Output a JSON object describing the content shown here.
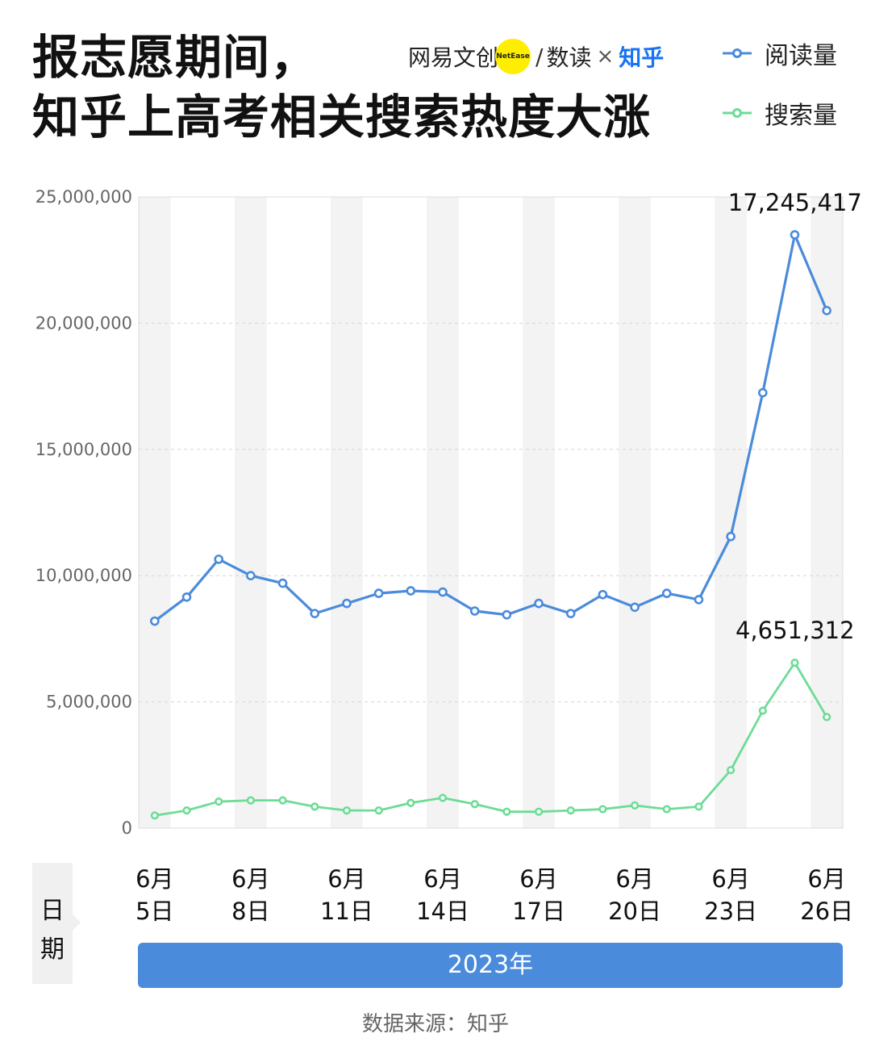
{
  "title": {
    "line1": "报志愿期间，",
    "line2": "知乎上高考相关搜索热度大涨"
  },
  "brand": {
    "part1": "网易文创",
    "dot_text": "NetEase",
    "slash": "/",
    "part2": "数读",
    "times": "×",
    "part3": "知乎",
    "dot_color": "#ffee00",
    "zhihu_color": "#1772f6"
  },
  "legend": {
    "items": [
      {
        "label": "阅读量",
        "color": "#4a8bdb"
      },
      {
        "label": "搜索量",
        "color": "#6ddc96"
      }
    ]
  },
  "x_axis": {
    "title": "日期",
    "year_label": "2023年"
  },
  "source": "数据来源：知乎",
  "chart_data": {
    "type": "line",
    "title": "报志愿期间，知乎上高考相关搜索热度大涨",
    "xlabel": "日期",
    "ylabel": "",
    "ylim": [
      0,
      25000000
    ],
    "yticks": [
      0,
      5000000,
      10000000,
      15000000,
      20000000,
      25000000
    ],
    "ytick_labels": [
      "0",
      "5,000,000",
      "10,000,000",
      "15,000,000",
      "20,000,000",
      "25,000,000"
    ],
    "x": [
      "6月5日",
      "6月6日",
      "6月7日",
      "6月8日",
      "6月9日",
      "6月10日",
      "6月11日",
      "6月12日",
      "6月13日",
      "6月14日",
      "6月15日",
      "6月16日",
      "6月17日",
      "6月18日",
      "6月19日",
      "6月20日",
      "6月21日",
      "6月22日",
      "6月23日",
      "6月24日",
      "6月25日",
      "6月26日"
    ],
    "xtick_labels": [
      {
        "index": 0,
        "month": "6月",
        "day": "5日"
      },
      {
        "index": 3,
        "month": "6月",
        "day": "8日"
      },
      {
        "index": 6,
        "month": "6月",
        "day": "11日"
      },
      {
        "index": 9,
        "month": "6月",
        "day": "14日"
      },
      {
        "index": 12,
        "month": "6月",
        "day": "17日"
      },
      {
        "index": 15,
        "month": "6月",
        "day": "20日"
      },
      {
        "index": 18,
        "month": "6月",
        "day": "23日"
      },
      {
        "index": 21,
        "month": "6月",
        "day": "26日"
      }
    ],
    "series": [
      {
        "name": "阅读量",
        "color": "#4a8bdb",
        "values": [
          8200000,
          9150000,
          10650000,
          10000000,
          9700000,
          8500000,
          8900000,
          9300000,
          9400000,
          9350000,
          8600000,
          8450000,
          8900000,
          8500000,
          9250000,
          8750000,
          9300000,
          9050000,
          11550000,
          17245417,
          23500000,
          20500000
        ],
        "peak_label": {
          "index": 19,
          "text": "17,245,417"
        }
      },
      {
        "name": "搜索量",
        "color": "#6ddc96",
        "values": [
          500000,
          700000,
          1050000,
          1100000,
          1100000,
          850000,
          700000,
          700000,
          1000000,
          1200000,
          950000,
          650000,
          650000,
          700000,
          750000,
          900000,
          750000,
          850000,
          2300000,
          4651312,
          6550000,
          4400000
        ],
        "peak_label": {
          "index": 19,
          "text": "4,651,312"
        }
      }
    ],
    "grid": true,
    "legend_position": "top-right",
    "band_color": "#f3f3f3"
  }
}
